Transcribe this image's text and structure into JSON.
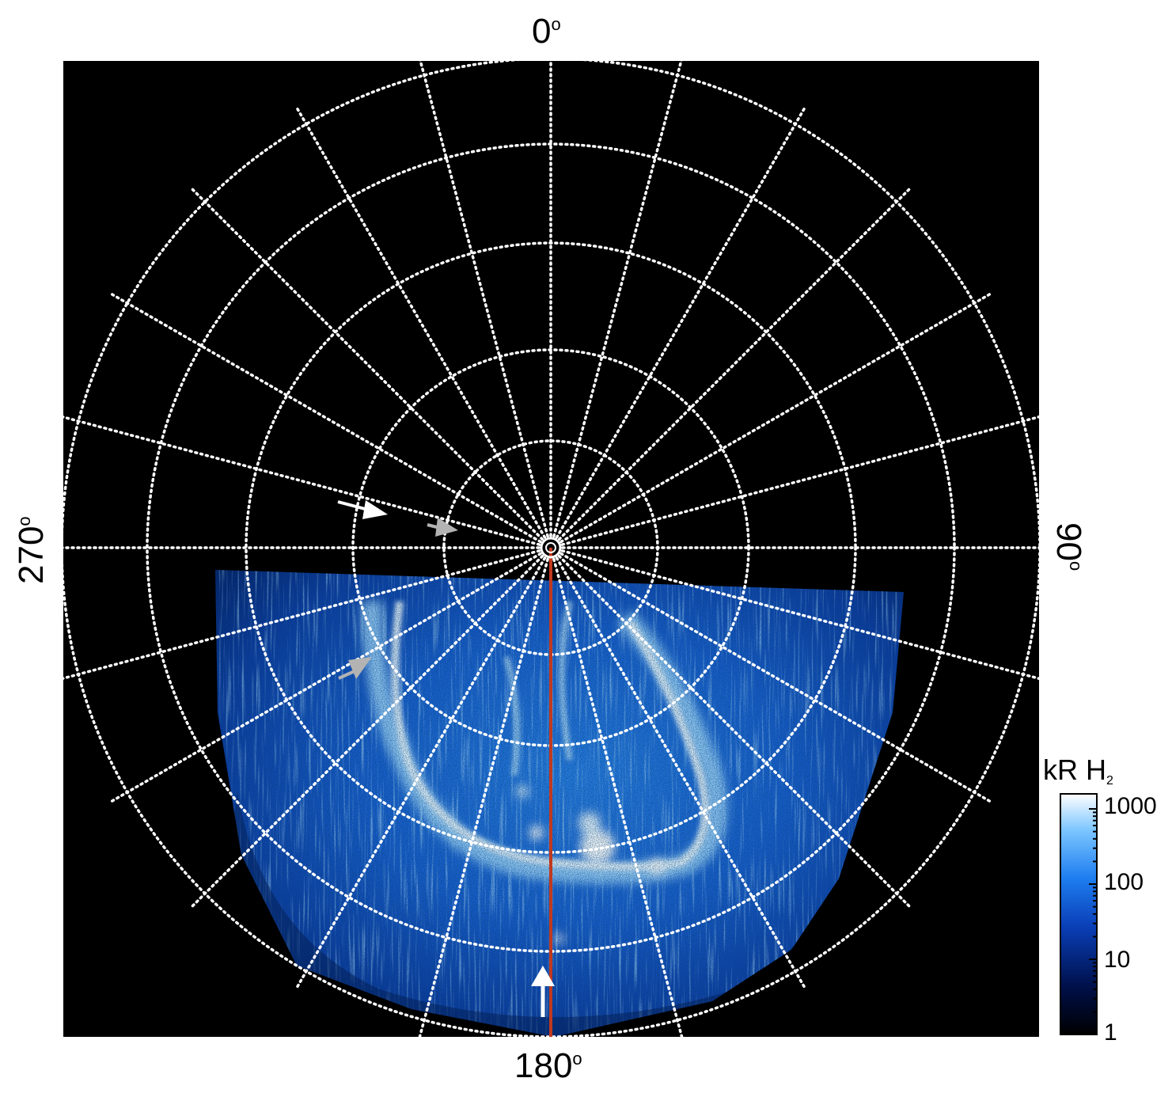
{
  "figure": {
    "longitude_labels": {
      "top": "0",
      "right": "90",
      "bottom": "180",
      "left": "270",
      "degree_symbol": "o"
    }
  },
  "colorbar": {
    "title": "kR H",
    "title_subscript": "2",
    "scale": "log",
    "ticks": [
      "1000",
      "100",
      "10",
      "1"
    ],
    "colors": [
      "#000000",
      "#00104a",
      "#0a3fb8",
      "#1e7ef0",
      "#7cc6ff",
      "#ffffff"
    ]
  },
  "annotations": {
    "grid_color": "#ffffff",
    "meridian_color": "#c0391f",
    "arrow_colors": {
      "white": "#ffffff",
      "gray": "#b3b3b3"
    }
  }
}
